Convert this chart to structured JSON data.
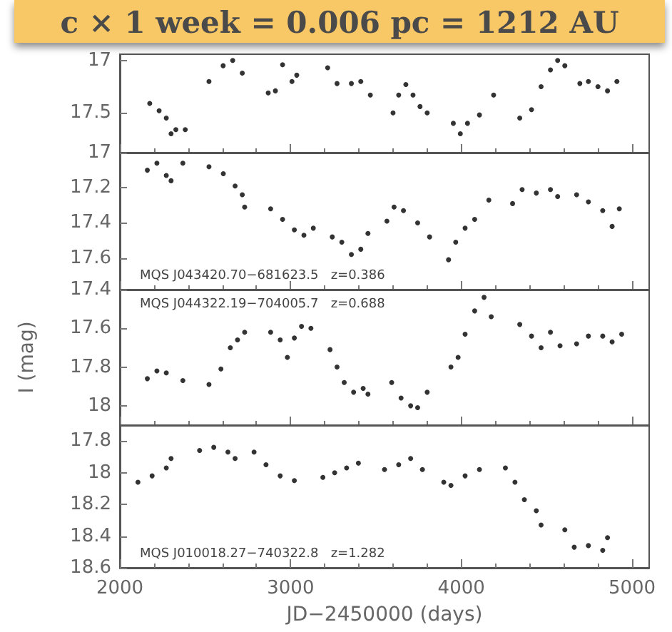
{
  "chart_data": [
    {
      "type": "scatter",
      "title": "c × 1 week = 0.006 pc = 1212 AU",
      "marker": "circle",
      "tick_labels": "y",
      "xlim": [
        2000,
        5100
      ],
      "xticks": [
        2000,
        3000,
        4000,
        5000
      ],
      "ylim": [
        17.88,
        16.94
      ],
      "yticks": [
        17,
        17.5
      ],
      "x": [
        2175,
        2230,
        2272,
        2300,
        2328,
        2383,
        2522,
        2605,
        2661,
        2717,
        2869,
        2911,
        2953,
        3008,
        3036,
        3217,
        3272,
        3356,
        3411,
        3467,
        3600,
        3633,
        3675,
        3717,
        3758,
        3800,
        3953,
        3994,
        4036,
        4106,
        4189,
        4342,
        4411,
        4467,
        4522,
        4564,
        4606,
        4694,
        4744,
        4800,
        4856,
        4911
      ],
      "series": [
        {
          "color": "#000000",
          "values": [
            17.41,
            17.48,
            17.55,
            17.7,
            17.66,
            17.66,
            17.2,
            17.05,
            17.0,
            17.12,
            17.31,
            17.29,
            17.04,
            17.2,
            17.14,
            17.07,
            17.22,
            17.22,
            17.2,
            17.33,
            17.5,
            17.33,
            17.23,
            17.33,
            17.44,
            17.5,
            17.6,
            17.7,
            17.6,
            17.52,
            17.33,
            17.55,
            17.47,
            17.25,
            17.09,
            17.0,
            17.05,
            17.22,
            17.2,
            17.25,
            17.29,
            17.2
          ]
        }
      ]
    },
    {
      "type": "scatter",
      "marker": "circle",
      "tick_labels": "y",
      "annotations": [
        "MQS J043420.70−681623.5   z=0.386"
      ],
      "xlim": [
        2000,
        5100
      ],
      "xticks": [
        2000,
        3000,
        4000,
        5000
      ],
      "ylim": [
        17.78,
        17
      ],
      "yticks": [
        17,
        17.2,
        17.4,
        17.6
      ],
      "x": [
        2161,
        2217,
        2272,
        2300,
        2369,
        2522,
        2606,
        2675,
        2717,
        2731,
        2883,
        2953,
        3022,
        3078,
        3133,
        3244,
        3300,
        3356,
        3411,
        3453,
        3564,
        3606,
        3661,
        3744,
        3814,
        3925,
        3967,
        4022,
        4078,
        4161,
        4300,
        4356,
        4439,
        4522,
        4564,
        4675,
        4744,
        4828,
        4883,
        4925
      ],
      "series": [
        {
          "color": "#000000",
          "values": [
            17.1,
            17.06,
            17.13,
            17.16,
            17.06,
            17.08,
            17.12,
            17.19,
            17.24,
            17.31,
            17.32,
            17.38,
            17.44,
            17.47,
            17.43,
            17.48,
            17.51,
            17.58,
            17.55,
            17.46,
            17.39,
            17.31,
            17.33,
            17.4,
            17.48,
            17.61,
            17.51,
            17.43,
            17.38,
            17.27,
            17.29,
            17.21,
            17.23,
            17.21,
            17.25,
            17.24,
            17.28,
            17.33,
            17.42,
            17.32
          ]
        }
      ]
    },
    {
      "type": "scatter",
      "marker": "circle",
      "tick_labels": "y",
      "ylabel": "I (mag)",
      "annotations": [
        "MQS J044322.19−704005.7   z=0.688"
      ],
      "xlim": [
        2000,
        5100
      ],
      "xticks": [
        2000,
        3000,
        4000,
        5000
      ],
      "ylim": [
        18.1,
        17.4
      ],
      "yticks": [
        17.4,
        17.6,
        17.8,
        18
      ],
      "x": [
        2161,
        2217,
        2272,
        2369,
        2522,
        2592,
        2647,
        2689,
        2731,
        2883,
        2939,
        2981,
        3022,
        3064,
        3119,
        3231,
        3272,
        3314,
        3369,
        3425,
        3453,
        3592,
        3647,
        3703,
        3744,
        3800,
        3939,
        3981,
        4022,
        4078,
        4133,
        4175,
        4342,
        4411,
        4467,
        4522,
        4578,
        4675,
        4744,
        4828,
        4883,
        4939
      ],
      "series": [
        {
          "color": "#000000",
          "values": [
            17.86,
            17.82,
            17.83,
            17.87,
            17.89,
            17.81,
            17.7,
            17.66,
            17.62,
            17.62,
            17.66,
            17.75,
            17.65,
            17.59,
            17.6,
            17.71,
            17.8,
            17.88,
            17.93,
            17.91,
            17.94,
            17.88,
            17.96,
            18.0,
            18.01,
            17.93,
            17.8,
            17.75,
            17.63,
            17.51,
            17.44,
            17.54,
            17.58,
            17.64,
            17.7,
            17.62,
            17.69,
            17.68,
            17.64,
            17.64,
            17.67,
            17.63
          ]
        }
      ]
    },
    {
      "type": "scatter",
      "marker": "circle",
      "xlabel": "JD−2450000 (days)",
      "annotations": [
        "MQS J010018.27−740322.8   z=1.282"
      ],
      "xlim": [
        2000,
        5100
      ],
      "xticks": [
        2000,
        3000,
        4000,
        5000
      ],
      "ylim": [
        18.6,
        17.7
      ],
      "yticks": [
        17.8,
        18,
        18.2,
        18.4,
        18.6
      ],
      "x": [
        2106,
        2189,
        2272,
        2300,
        2467,
        2550,
        2633,
        2675,
        2786,
        2856,
        2939,
        3022,
        3189,
        3258,
        3328,
        3397,
        3550,
        3633,
        3703,
        3772,
        3897,
        3939,
        4022,
        4106,
        4258,
        4314,
        4369,
        4439,
        4467,
        4606,
        4661,
        4744,
        4828,
        4856
      ],
      "series": [
        {
          "color": "#000000",
          "values": [
            18.06,
            18.02,
            17.97,
            17.91,
            17.86,
            17.84,
            17.87,
            17.91,
            17.87,
            17.95,
            18.02,
            18.05,
            18.03,
            18.0,
            17.97,
            17.94,
            17.98,
            17.95,
            17.91,
            17.98,
            18.06,
            18.08,
            18.02,
            17.98,
            17.97,
            18.06,
            18.17,
            18.24,
            18.33,
            18.36,
            18.47,
            18.46,
            18.49,
            18.41
          ]
        }
      ]
    }
  ]
}
